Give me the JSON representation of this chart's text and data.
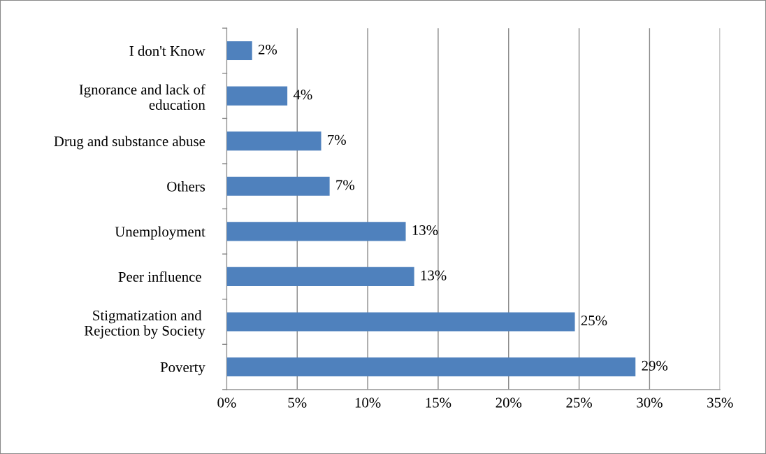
{
  "chart_data": {
    "type": "bar",
    "orientation": "horizontal",
    "categories": [
      "I don't Know",
      "Ignorance and lack of\neducation",
      "Drug and substance abuse",
      "Others",
      "Unemployment",
      "Peer influence ",
      "Stigmatization and \nRejection by Society",
      "Poverty"
    ],
    "values": [
      1.8,
      4.3,
      6.7,
      7.3,
      12.7,
      13.3,
      24.7,
      29.0
    ],
    "value_labels": [
      "2%",
      "4%",
      "7%",
      "7%",
      "13%",
      "13%",
      "25%",
      "29%"
    ],
    "color": "#4f81bd",
    "xlim": [
      0,
      35
    ],
    "xticks": [
      {
        "value": 0,
        "label": "0%"
      },
      {
        "value": 5,
        "label": "5%"
      },
      {
        "value": 10,
        "label": "10%"
      },
      {
        "value": 15,
        "label": "15%"
      },
      {
        "value": 20,
        "label": "20%"
      },
      {
        "value": 25,
        "label": "25%"
      },
      {
        "value": 30,
        "label": "30%"
      },
      {
        "value": 35,
        "label": "35%"
      }
    ],
    "grid": "x",
    "legend": false
  }
}
